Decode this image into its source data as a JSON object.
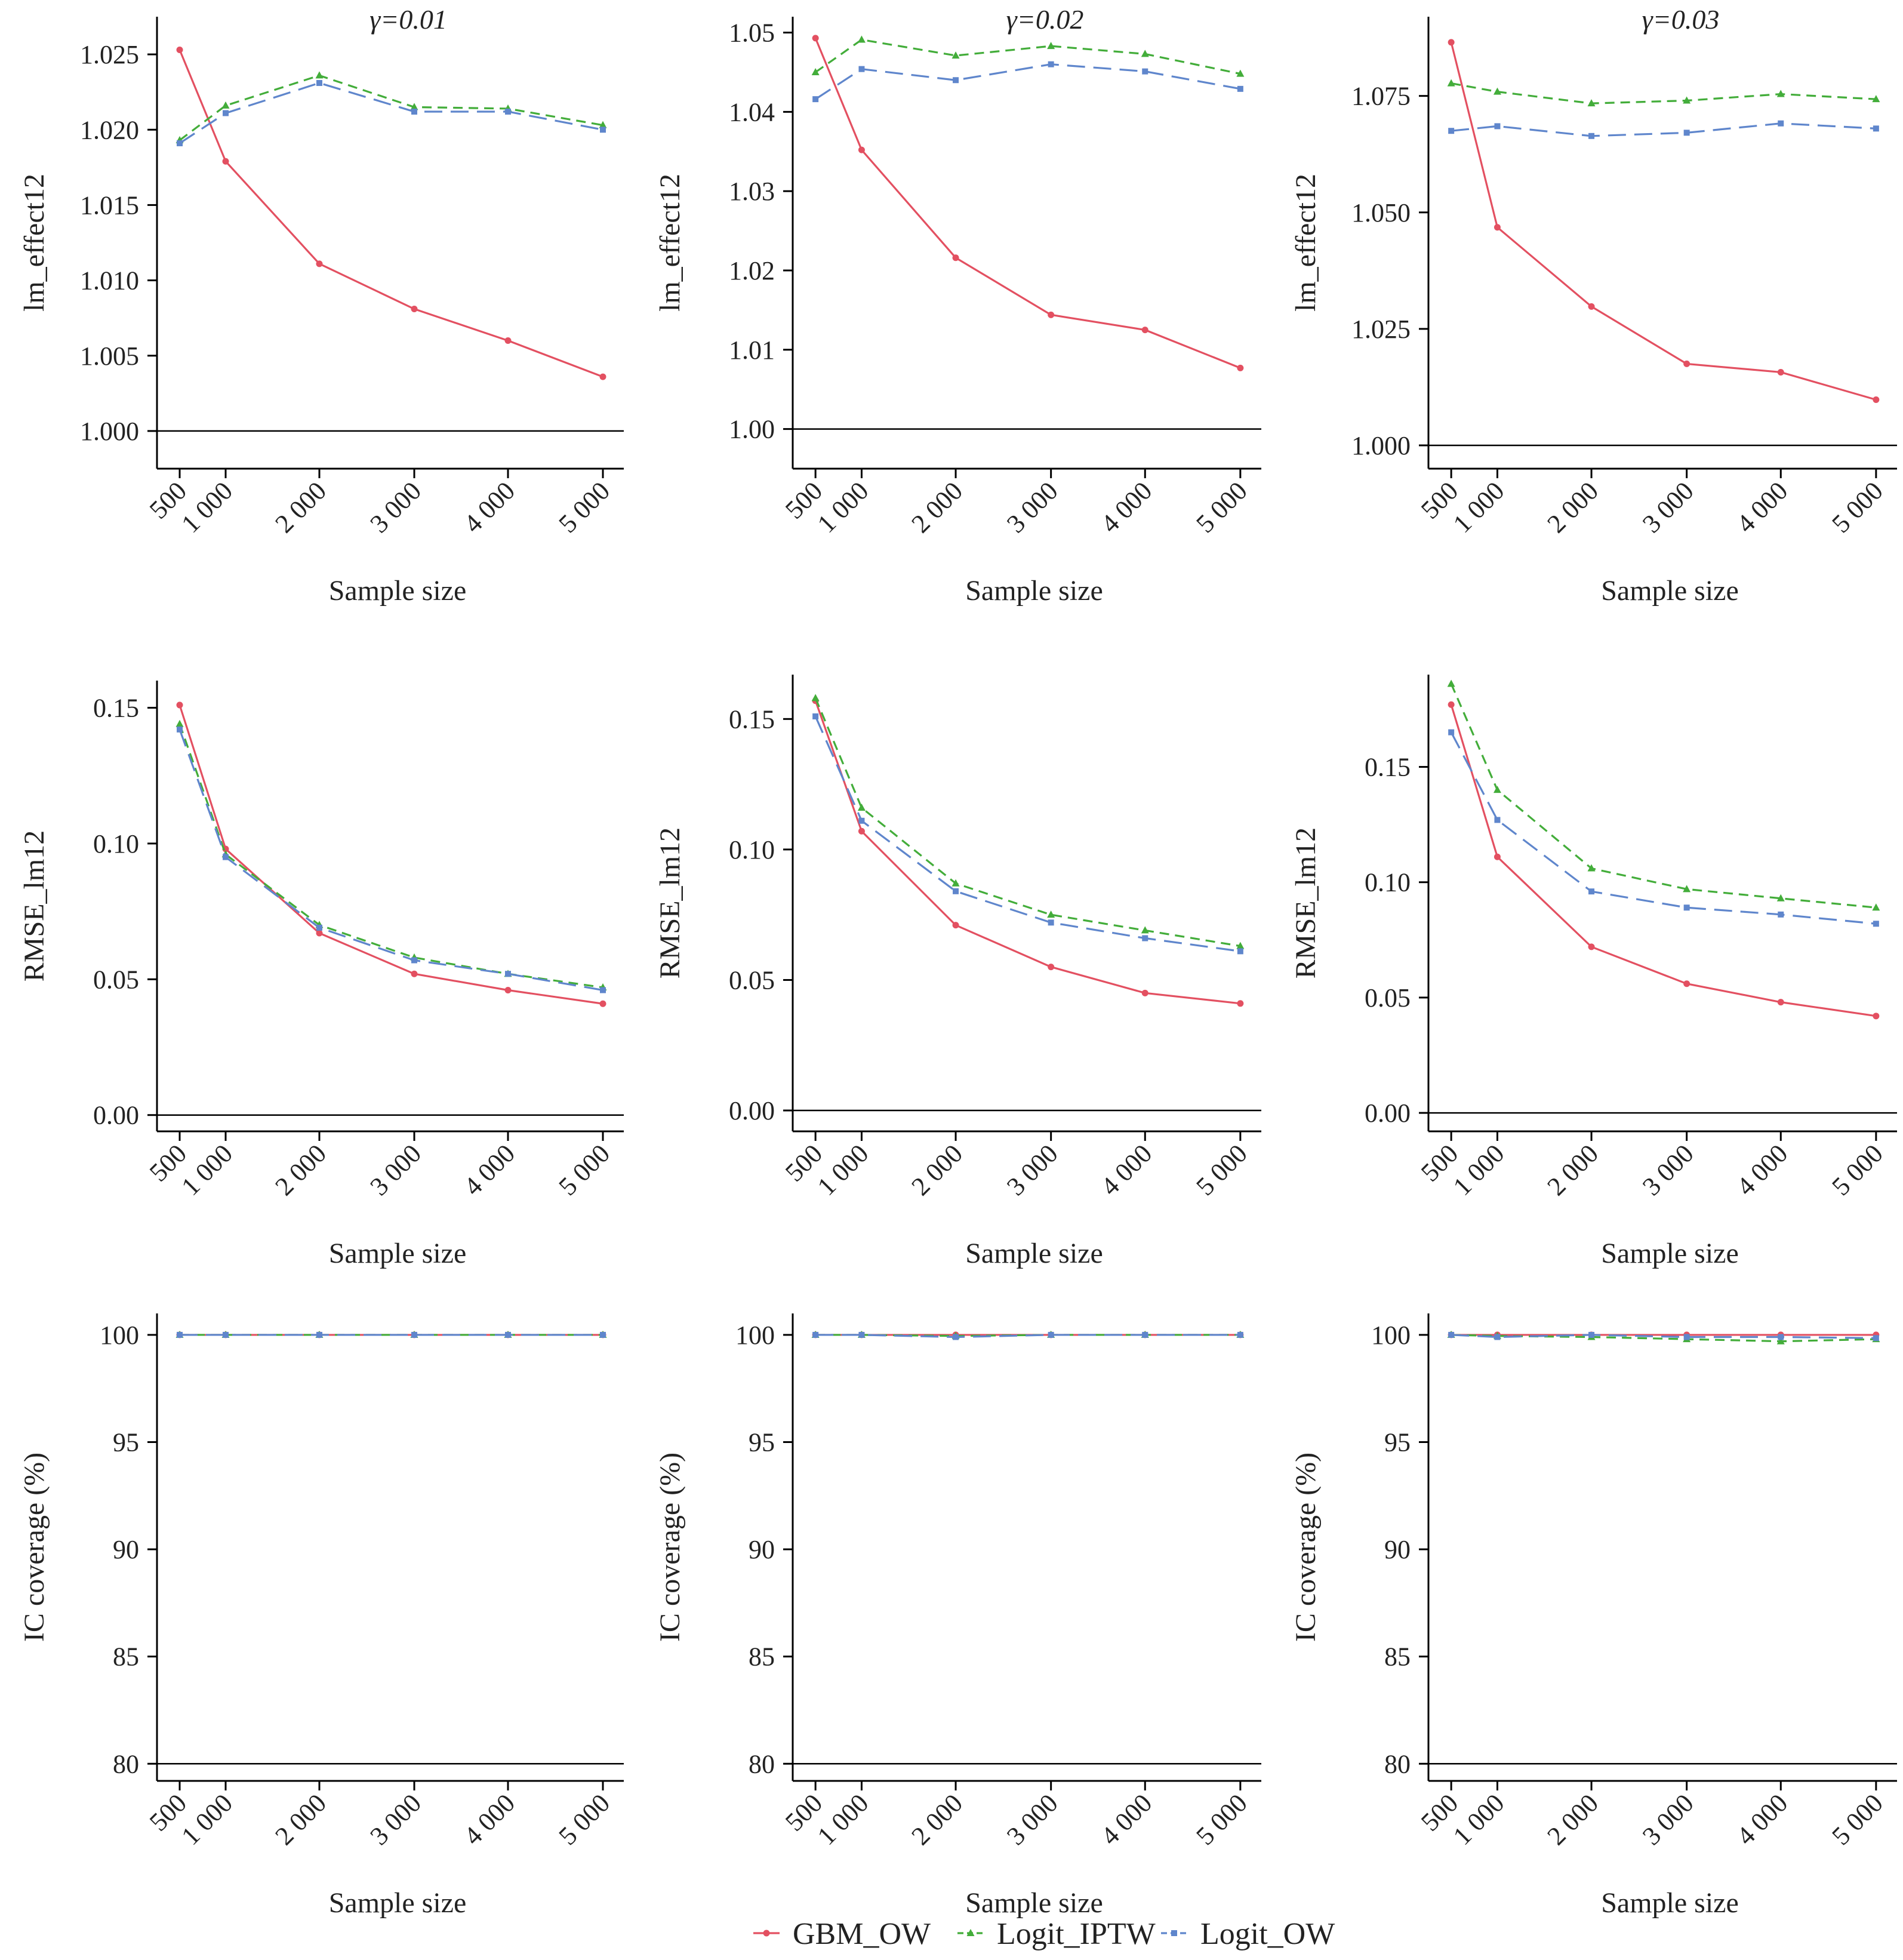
{
  "colors": {
    "GBM_OW": "#e35061",
    "Logit_IPTW": "#43ad3a",
    "Logit_OW": "#5f86cc"
  },
  "legend": [
    "GBM_OW",
    "Logit_IPTW",
    "Logit_OW"
  ],
  "chart_data": [
    {
      "type": "line",
      "title": "γ=0.01",
      "xlabel": "Sample size",
      "ylabel": "lm_effect12",
      "x": [
        500,
        1000,
        2000,
        3000,
        4000,
        5000
      ],
      "x_tick_labels": [
        "500",
        "1 000",
        "2 000",
        "3 000",
        "4 000",
        "5 000"
      ],
      "ylim": [
        0.9975,
        1.0275
      ],
      "y_ticks": [
        1.0,
        1.005,
        1.01,
        1.015,
        1.02,
        1.025
      ],
      "y_tick_labels": [
        "1.000",
        "1.005",
        "1.010",
        "1.015",
        "1.020",
        "1.025"
      ],
      "series": [
        {
          "name": "GBM_OW",
          "values": [
            1.0253,
            1.0179,
            1.0111,
            1.0081,
            1.006,
            1.0036
          ]
        },
        {
          "name": "Logit_IPTW",
          "values": [
            1.0193,
            1.0216,
            1.0236,
            1.0215,
            1.0214,
            1.0203
          ]
        },
        {
          "name": "Logit_OW",
          "values": [
            1.0191,
            1.0211,
            1.0231,
            1.0212,
            1.0212,
            1.02
          ]
        }
      ]
    },
    {
      "type": "line",
      "title": "γ=0.02",
      "xlabel": "Sample size",
      "ylabel": "lm_effect12",
      "x": [
        500,
        1000,
        2000,
        3000,
        4000,
        5000
      ],
      "x_tick_labels": [
        "500",
        "1 000",
        "2 000",
        "3 000",
        "4 000",
        "5 000"
      ],
      "ylim": [
        0.995,
        1.052
      ],
      "y_ticks": [
        1.0,
        1.01,
        1.02,
        1.03,
        1.04,
        1.05
      ],
      "y_tick_labels": [
        "1.00",
        "1.01",
        "1.02",
        "1.03",
        "1.04",
        "1.05"
      ],
      "series": [
        {
          "name": "GBM_OW",
          "values": [
            1.0493,
            1.0352,
            1.0216,
            1.0144,
            1.0125,
            1.0077
          ]
        },
        {
          "name": "Logit_IPTW",
          "values": [
            1.045,
            1.0491,
            1.0471,
            1.0483,
            1.0473,
            1.0448
          ]
        },
        {
          "name": "Logit_OW",
          "values": [
            1.0416,
            1.0454,
            1.044,
            1.046,
            1.0451,
            1.0429
          ]
        }
      ]
    },
    {
      "type": "line",
      "title": "γ=0.03",
      "xlabel": "Sample size",
      "ylabel": "lm_effect12",
      "x": [
        500,
        1000,
        2000,
        3000,
        4000,
        5000
      ],
      "x_tick_labels": [
        "500",
        "1 000",
        "2 000",
        "3 000",
        "4 000",
        "5 000"
      ],
      "ylim": [
        0.995,
        1.092
      ],
      "y_ticks": [
        1.0,
        1.025,
        1.05,
        1.075
      ],
      "y_tick_labels": [
        "1.000",
        "1.025",
        "1.050",
        "1.075"
      ],
      "series": [
        {
          "name": "GBM_OW",
          "values": [
            1.0865,
            1.0468,
            1.0298,
            1.0175,
            1.0157,
            1.0098
          ]
        },
        {
          "name": "Logit_IPTW",
          "values": [
            1.0777,
            1.0759,
            1.0734,
            1.074,
            1.0754,
            1.0743
          ]
        },
        {
          "name": "Logit_OW",
          "values": [
            1.0675,
            1.0685,
            1.0664,
            1.0671,
            1.0691,
            1.068
          ]
        }
      ]
    },
    {
      "type": "line",
      "title": "",
      "xlabel": "Sample size",
      "ylabel": "RMSE_lm12",
      "x": [
        500,
        1000,
        2000,
        3000,
        4000,
        5000
      ],
      "x_tick_labels": [
        "500",
        "1 000",
        "2 000",
        "3 000",
        "4 000",
        "5 000"
      ],
      "ylim": [
        -0.006,
        0.16
      ],
      "y_ticks": [
        0.0,
        0.05,
        0.1,
        0.15
      ],
      "y_tick_labels": [
        "0.00",
        "0.05",
        "0.10",
        "0.15"
      ],
      "series": [
        {
          "name": "GBM_OW",
          "values": [
            0.151,
            0.098,
            0.067,
            0.052,
            0.046,
            0.041
          ]
        },
        {
          "name": "Logit_IPTW",
          "values": [
            0.144,
            0.096,
            0.07,
            0.058,
            0.052,
            0.047
          ]
        },
        {
          "name": "Logit_OW",
          "values": [
            0.142,
            0.095,
            0.069,
            0.057,
            0.052,
            0.046
          ]
        }
      ]
    },
    {
      "type": "line",
      "title": "",
      "xlabel": "Sample size",
      "ylabel": "RMSE_lm12",
      "x": [
        500,
        1000,
        2000,
        3000,
        4000,
        5000
      ],
      "x_tick_labels": [
        "500",
        "1 000",
        "2 000",
        "3 000",
        "4 000",
        "5 000"
      ],
      "ylim": [
        -0.008,
        0.167
      ],
      "y_ticks": [
        0.0,
        0.05,
        0.1,
        0.15
      ],
      "y_tick_labels": [
        "0.00",
        "0.05",
        "0.10",
        "0.15"
      ],
      "series": [
        {
          "name": "GBM_OW",
          "values": [
            0.157,
            0.107,
            0.071,
            0.055,
            0.045,
            0.041
          ]
        },
        {
          "name": "Logit_IPTW",
          "values": [
            0.158,
            0.116,
            0.087,
            0.075,
            0.069,
            0.063
          ]
        },
        {
          "name": "Logit_OW",
          "values": [
            0.151,
            0.111,
            0.084,
            0.072,
            0.066,
            0.061
          ]
        }
      ]
    },
    {
      "type": "line",
      "title": "",
      "xlabel": "Sample size",
      "ylabel": "RMSE_lm12",
      "x": [
        500,
        1000,
        2000,
        3000,
        4000,
        5000
      ],
      "x_tick_labels": [
        "500",
        "1 000",
        "2 000",
        "3 000",
        "4 000",
        "5 000"
      ],
      "ylim": [
        -0.008,
        0.19
      ],
      "y_ticks": [
        0.0,
        0.05,
        0.1,
        0.15
      ],
      "y_tick_labels": [
        "0.00",
        "0.05",
        "0.10",
        "0.15"
      ],
      "series": [
        {
          "name": "GBM_OW",
          "values": [
            0.177,
            0.111,
            0.072,
            0.056,
            0.048,
            0.042
          ]
        },
        {
          "name": "Logit_IPTW",
          "values": [
            0.186,
            0.14,
            0.106,
            0.097,
            0.093,
            0.089
          ]
        },
        {
          "name": "Logit_OW",
          "values": [
            0.165,
            0.127,
            0.096,
            0.089,
            0.086,
            0.082
          ]
        }
      ]
    },
    {
      "type": "line",
      "title": "",
      "xlabel": "Sample size",
      "ylabel": "IC coverage (%)",
      "x": [
        500,
        1000,
        2000,
        3000,
        4000,
        5000
      ],
      "x_tick_labels": [
        "500",
        "1 000",
        "2 000",
        "3 000",
        "4 000",
        "5 000"
      ],
      "ylim": [
        79.2,
        101.0
      ],
      "y_ticks": [
        80,
        85,
        90,
        95,
        100
      ],
      "y_tick_labels": [
        "80",
        "85",
        "90",
        "95",
        "100"
      ],
      "series": [
        {
          "name": "GBM_OW",
          "values": [
            100.0,
            100.0,
            100.0,
            100.0,
            100.0,
            100.0
          ]
        },
        {
          "name": "Logit_IPTW",
          "values": [
            100.0,
            100.0,
            100.0,
            100.0,
            100.0,
            100.0
          ]
        },
        {
          "name": "Logit_OW",
          "values": [
            100.0,
            100.0,
            100.0,
            100.0,
            100.0,
            100.0
          ]
        }
      ]
    },
    {
      "type": "line",
      "title": "",
      "xlabel": "Sample size",
      "ylabel": "IC coverage (%)",
      "x": [
        500,
        1000,
        2000,
        3000,
        4000,
        5000
      ],
      "x_tick_labels": [
        "500",
        "1 000",
        "2 000",
        "3 000",
        "4 000",
        "5 000"
      ],
      "ylim": [
        79.2,
        101.0
      ],
      "y_ticks": [
        80,
        85,
        90,
        95,
        100
      ],
      "y_tick_labels": [
        "80",
        "85",
        "90",
        "95",
        "100"
      ],
      "series": [
        {
          "name": "GBM_OW",
          "values": [
            100.0,
            100.0,
            100.0,
            100.0,
            100.0,
            100.0
          ]
        },
        {
          "name": "Logit_IPTW",
          "values": [
            100.0,
            100.0,
            99.95,
            100.0,
            100.0,
            100.0
          ]
        },
        {
          "name": "Logit_OW",
          "values": [
            100.0,
            100.0,
            99.9,
            100.0,
            100.0,
            100.0
          ]
        }
      ]
    },
    {
      "type": "line",
      "title": "",
      "xlabel": "Sample size",
      "ylabel": "IC coverage (%)",
      "x": [
        500,
        1000,
        2000,
        3000,
        4000,
        5000
      ],
      "x_tick_labels": [
        "500",
        "1 000",
        "2 000",
        "3 000",
        "4 000",
        "5 000"
      ],
      "ylim": [
        79.2,
        101.0
      ],
      "y_ticks": [
        80,
        85,
        90,
        95,
        100
      ],
      "y_tick_labels": [
        "80",
        "85",
        "90",
        "95",
        "100"
      ],
      "series": [
        {
          "name": "GBM_OW",
          "values": [
            100.0,
            100.0,
            100.0,
            100.0,
            100.0,
            100.0
          ]
        },
        {
          "name": "Logit_IPTW",
          "values": [
            100.0,
            99.95,
            99.9,
            99.8,
            99.7,
            99.8
          ]
        },
        {
          "name": "Logit_OW",
          "values": [
            100.0,
            99.9,
            100.0,
            99.9,
            99.9,
            99.85
          ]
        }
      ]
    }
  ]
}
